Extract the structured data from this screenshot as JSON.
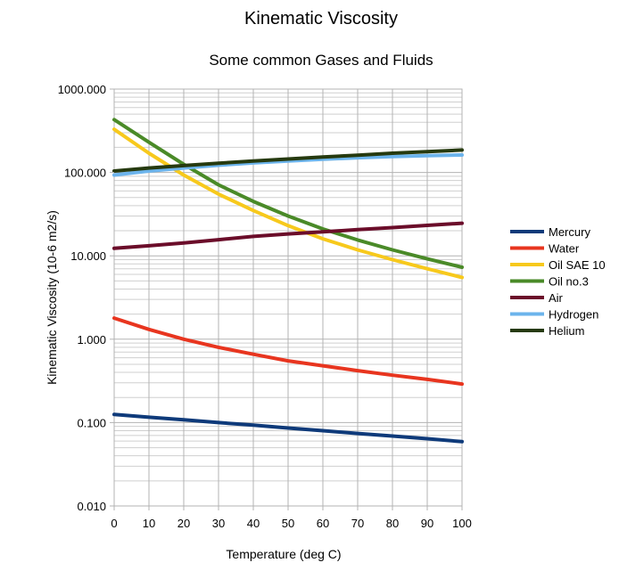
{
  "chart_data": {
    "type": "line",
    "title": "Kinematic Viscosity",
    "subtitle": "Some common Gases and Fluids",
    "xlabel": "Temperature (deg C)",
    "ylabel": "Kinematic Viscosity (10-6 m2/s)",
    "yscale": "log",
    "xlim": [
      0,
      100
    ],
    "ylim": [
      0.01,
      1000
    ],
    "x_ticks": [
      "0",
      "10",
      "20",
      "30",
      "40",
      "50",
      "60",
      "70",
      "80",
      "90",
      "100"
    ],
    "y_ticks": [
      "0.010",
      "0.100",
      "1.000",
      "10.000",
      "100.000",
      "1000.000"
    ],
    "grid": true,
    "legend_position": "right",
    "x": [
      0,
      10,
      20,
      30,
      40,
      50,
      60,
      70,
      80,
      90,
      100
    ],
    "series": [
      {
        "name": "Mercury",
        "color": "#0e3a7a",
        "values": [
          0.125,
          0.116,
          0.108,
          0.1,
          0.093,
          0.086,
          0.08,
          0.074,
          0.069,
          0.064,
          0.059
        ]
      },
      {
        "name": "Water",
        "color": "#e8351f",
        "values": [
          1.79,
          1.31,
          1.0,
          0.8,
          0.66,
          0.55,
          0.48,
          0.42,
          0.37,
          0.33,
          0.29
        ]
      },
      {
        "name": "Oil SAE 10",
        "color": "#f7c91c",
        "values": [
          330,
          170,
          93,
          55,
          35,
          23,
          16,
          11.8,
          9,
          7,
          5.5
        ]
      },
      {
        "name": "Oil no.3",
        "color": "#4a8a28",
        "values": [
          430,
          230,
          125,
          71,
          45,
          30,
          21,
          15.5,
          11.8,
          9.2,
          7.3
        ]
      },
      {
        "name": "Air",
        "color": "#6b0d2a",
        "values": [
          12.3,
          13.2,
          14.3,
          15.6,
          17.1,
          18.3,
          19.4,
          20.6,
          21.8,
          23.2,
          24.6
        ]
      },
      {
        "name": "Hydrogen",
        "color": "#6cb4ec",
        "values": [
          93,
          104,
          113,
          122,
          130,
          137,
          144,
          150,
          155,
          159,
          162
        ]
      },
      {
        "name": "Helium",
        "color": "#263a0f",
        "values": [
          104,
          113,
          121,
          129,
          137,
          145,
          153,
          161,
          170,
          178,
          186
        ]
      }
    ]
  }
}
